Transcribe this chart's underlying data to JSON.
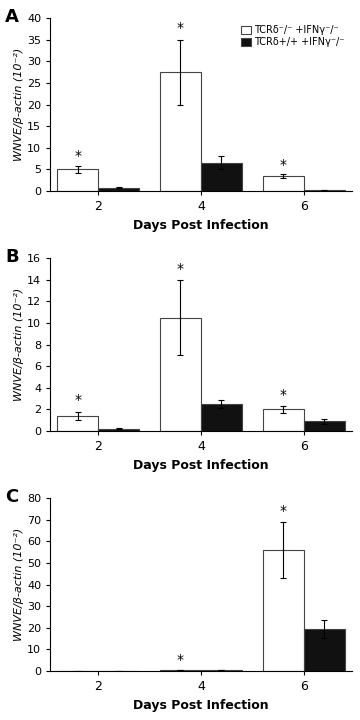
{
  "panels": [
    {
      "label": "A",
      "days": [
        2,
        4,
        6
      ],
      "white_vals": [
        5.0,
        27.5,
        3.5
      ],
      "white_err": [
        0.8,
        7.5,
        0.5
      ],
      "black_vals": [
        0.8,
        6.5,
        0.2
      ],
      "black_err": [
        0.2,
        1.5,
        0.1
      ],
      "ylim": [
        0,
        40
      ],
      "yticks": [
        0,
        5,
        10,
        15,
        20,
        25,
        30,
        35,
        40
      ],
      "star_positions": [
        {
          "day_idx": 0,
          "bar": "white",
          "y": 6.5
        },
        {
          "day_idx": 1,
          "bar": "white",
          "y": 36.0
        },
        {
          "day_idx": 2,
          "bar": "white",
          "y": 4.5
        }
      ],
      "show_legend": true
    },
    {
      "label": "B",
      "days": [
        2,
        4,
        6
      ],
      "white_vals": [
        1.4,
        10.5,
        2.0
      ],
      "white_err": [
        0.35,
        3.5,
        0.35
      ],
      "black_vals": [
        0.2,
        2.5,
        0.9
      ],
      "black_err": [
        0.05,
        0.4,
        0.2
      ],
      "ylim": [
        0,
        16
      ],
      "yticks": [
        0,
        2,
        4,
        6,
        8,
        10,
        12,
        14,
        16
      ],
      "star_positions": [
        {
          "day_idx": 0,
          "bar": "white",
          "y": 2.2
        },
        {
          "day_idx": 1,
          "bar": "white",
          "y": 14.3
        },
        {
          "day_idx": 2,
          "bar": "white",
          "y": 2.7
        }
      ],
      "show_legend": false
    },
    {
      "label": "C",
      "days": [
        2,
        4,
        6
      ],
      "white_vals": [
        0.0,
        0.5,
        56.0
      ],
      "white_err": [
        0.0,
        0.0,
        13.0
      ],
      "black_vals": [
        0.0,
        0.3,
        19.5
      ],
      "black_err": [
        0.0,
        0.0,
        4.0
      ],
      "ylim": [
        0,
        80
      ],
      "yticks": [
        0,
        10,
        20,
        30,
        40,
        50,
        60,
        70,
        80
      ],
      "star_positions": [
        {
          "day_idx": 1,
          "bar": "white",
          "y": 2.0
        },
        {
          "day_idx": 2,
          "bar": "white",
          "y": 71.0
        }
      ],
      "show_legend": false
    }
  ],
  "legend_labels": [
    "TCRδ⁻/⁻ +IFNγ⁻/⁻",
    "TCRδ+/+ +IFNγ⁻/⁻"
  ],
  "ylabel": "WNVE/β-actin (10⁻²)",
  "xlabel": "Days Post Infection",
  "bar_width": 0.3,
  "white_color": "#ffffff",
  "black_color": "#111111",
  "edge_color": "#444444",
  "background_color": "#ffffff"
}
